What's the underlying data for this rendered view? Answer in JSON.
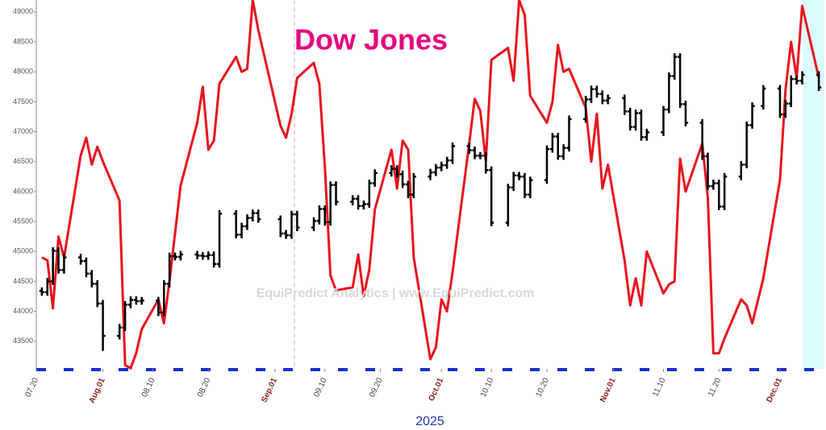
{
  "chart_data": {
    "type": "ohlc",
    "title": "Dow Jones",
    "xlabel": "2025",
    "watermark": "EquiPredict Analytics | www.EquiPredict.com",
    "color": "#000000",
    "x": [
      "07.21",
      "07.22",
      "07.23",
      "07.24",
      "07.25",
      "07.28",
      "07.29",
      "07.30",
      "07.31",
      "08.01",
      "08.04",
      "08.05",
      "08.06",
      "08.07",
      "08.08",
      "08.11",
      "08.12",
      "08.13",
      "08.14",
      "08.15",
      "08.18",
      "08.19",
      "08.20",
      "08.21",
      "08.22",
      "08.25",
      "08.26",
      "08.27",
      "08.28",
      "08.29",
      "09.02",
      "09.03",
      "09.04",
      "09.05",
      "09.08",
      "09.09",
      "09.10",
      "09.11",
      "09.12",
      "09.15",
      "09.16",
      "09.17",
      "09.18",
      "09.19",
      "09.22",
      "09.23",
      "09.24",
      "09.25",
      "09.26",
      "09.29",
      "09.30",
      "10.01",
      "10.02",
      "10.03",
      "10.06",
      "10.07",
      "10.08",
      "10.09",
      "10.10",
      "10.13",
      "10.14",
      "10.15",
      "10.16",
      "10.17",
      "10.20",
      "10.21",
      "10.22",
      "10.23",
      "10.24",
      "10.27",
      "10.28",
      "10.29",
      "10.30",
      "10.31",
      "11.03",
      "11.04",
      "11.05",
      "11.06",
      "11.07",
      "11.10",
      "11.11",
      "11.12",
      "11.13",
      "11.14",
      "11.17",
      "11.18",
      "11.19",
      "11.20",
      "11.21",
      "11.24",
      "11.25",
      "11.26",
      "11.28",
      "12.01",
      "12.02",
      "12.03",
      "12.04",
      "12.05",
      "12.08"
    ],
    "open": [
      44340,
      44320,
      44500,
      45010,
      44690,
      44900,
      44840,
      44630,
      44460,
      44130,
      43590,
      43730,
      44110,
      44190,
      44170,
      44180,
      43980,
      44460,
      44920,
      44910,
      44950,
      44930,
      44920,
      44940,
      44790,
      45630,
      45280,
      45420,
      45560,
      45640,
      45540,
      45300,
      45270,
      45620,
      45400,
      45510,
      45710,
      45490,
      46110,
      45830,
      45880,
      45760,
      45790,
      46140,
      46310,
      46380,
      46290,
      46120,
      45950,
      46250,
      46320,
      46400,
      46440,
      46520,
      46760,
      46690,
      46600,
      46600,
      46360,
      45480,
      46070,
      46270,
      46250,
      45950,
      46190,
      46710,
      46920,
      46590,
      46730,
      47210,
      47540,
      47710,
      47630,
      47520,
      47560,
      47340,
      47080,
      47310,
      46910,
      46990,
      47370,
      47930,
      48250,
      47460,
      47150,
      46590,
      46090,
      46140,
      45750,
      46250,
      46450,
      47110,
      47430,
      47720,
      47290,
      47470,
      47880,
      47850,
      47950
    ],
    "high": [
      44400,
      44560,
      45070,
      45070,
      44960,
      44960,
      44900,
      44690,
      44520,
      44190,
      43790,
      44170,
      44250,
      44250,
      44240,
      44240,
      44520,
      44980,
      44980,
      45010,
      45010,
      44990,
      45000,
      45000,
      45690,
      45690,
      45480,
      45620,
      45700,
      45700,
      45600,
      45360,
      45680,
      45680,
      45570,
      45770,
      45770,
      46170,
      46170,
      45940,
      45940,
      45850,
      46200,
      46370,
      46440,
      46440,
      46350,
      46180,
      46310,
      46380,
      46460,
      46500,
      46580,
      46820,
      46820,
      46750,
      46660,
      46660,
      46420,
      46130,
      46330,
      46330,
      46310,
      46250,
      46770,
      46980,
      46980,
      46790,
      47270,
      47600,
      47770,
      47770,
      47690,
      47620,
      47620,
      47400,
      47370,
      47370,
      47050,
      47430,
      47990,
      48310,
      48310,
      47520,
      47210,
      46650,
      46200,
      46200,
      46310,
      46510,
      47170,
      47490,
      47780,
      47780,
      47530,
      47940,
      47940,
      48010,
      48010
    ],
    "low": [
      44260,
      44260,
      44440,
      44630,
      44630,
      44780,
      44570,
      44400,
      44070,
      43340,
      43530,
      43670,
      44050,
      44110,
      44110,
      43920,
      43920,
      44400,
      44850,
      44850,
      44870,
      44860,
      44860,
      44730,
      44730,
      45220,
      45220,
      45360,
      45500,
      45480,
      45240,
      45210,
      45210,
      45340,
      45340,
      45450,
      45430,
      45430,
      45770,
      45770,
      45700,
      45700,
      45730,
      46080,
      46250,
      46230,
      46060,
      45890,
      45890,
      46190,
      46260,
      46340,
      46380,
      46460,
      46630,
      46540,
      46540,
      46300,
      45420,
      45420,
      46010,
      46190,
      45890,
      45890,
      46130,
      46650,
      46530,
      46530,
      46670,
      47150,
      47480,
      47570,
      47460,
      47460,
      47280,
      47020,
      47020,
      46850,
      46850,
      46930,
      47310,
      47870,
      47400,
      47090,
      46530,
      46030,
      46030,
      45690,
      45690,
      46190,
      46390,
      47050,
      47370,
      47230,
      47230,
      47410,
      47790,
      47790,
      47680
    ],
    "close": [
      44320,
      44500,
      45010,
      44690,
      44900,
      44840,
      44630,
      44460,
      44130,
      43590,
      43730,
      44110,
      44190,
      44170,
      44180,
      43980,
      44460,
      44920,
      44910,
      44950,
      44930,
      44920,
      44940,
      44790,
      45630,
      45280,
      45420,
      45560,
      45640,
      45540,
      45300,
      45270,
      45620,
      45400,
      45510,
      45710,
      45490,
      46110,
      45830,
      45880,
      45760,
      45790,
      46140,
      46310,
      46380,
      46290,
      46120,
      45950,
      46250,
      46320,
      46400,
      46440,
      46520,
      46760,
      46690,
      46600,
      46600,
      46360,
      45480,
      46070,
      46270,
      46250,
      45950,
      46190,
      46710,
      46920,
      46590,
      46730,
      47210,
      47540,
      47710,
      47630,
      47520,
      47560,
      47340,
      47080,
      47310,
      46910,
      46990,
      47370,
      47930,
      48250,
      47460,
      47150,
      46590,
      46090,
      46140,
      45750,
      46250,
      46450,
      47110,
      47430,
      47720,
      47290,
      47470,
      47880,
      47850,
      47950,
      47740
    ],
    "line": {
      "type": "line",
      "color": "#e8141c",
      "values": [
        44900,
        44850,
        44050,
        45250,
        44900,
        46600,
        46900,
        46450,
        46750,
        46500,
        45850,
        43100,
        43050,
        43300,
        43700,
        44200,
        43800,
        44500,
        45300,
        46100,
        47150,
        47750,
        46700,
        46850,
        47800,
        48250,
        48000,
        48050,
        49200,
        48700,
        47100,
        46900,
        47300,
        47900,
        48150,
        47800,
        46400,
        44600,
        44350,
        44400,
        44950,
        44250,
        44700,
        45700,
        46700,
        46050,
        46850,
        46700,
        44900,
        43200,
        43400,
        44200,
        44000,
        44650,
        46800,
        47550,
        47350,
        46500,
        48200,
        48400,
        47850,
        49200,
        48950,
        47600,
        47150,
        47500,
        48450,
        48000,
        48050,
        47400,
        46500,
        47300,
        46050,
        46450,
        44850,
        44100,
        44550,
        44100,
        45000,
        44300,
        44450,
        44500,
        46550,
        46000,
        46800,
        45900,
        43300,
        43300,
        43550,
        44200,
        44100,
        43800,
        44550,
        46200,
        47700,
        48500,
        47900,
        49100,
        47900
      ]
    },
    "xlim": [
      "07.20",
      "12.09"
    ],
    "xticks": [
      "07.20",
      {
        "value": "08.01",
        "label": "Aug.01"
      },
      "08.10",
      "08.20",
      {
        "value": "09.01",
        "label": "Sep.01"
      },
      "09.10",
      "09.20",
      {
        "value": "10.01",
        "label": "Oct.01"
      },
      "10.10",
      "10.20",
      {
        "value": "11.01",
        "label": "Nov.01"
      },
      "11.10",
      "11.20",
      {
        "value": "12.01",
        "label": "Dec.01"
      }
    ],
    "ylim": [
      43040,
      49200
    ],
    "yticks": [
      43500,
      44000,
      44500,
      45000,
      45500,
      46000,
      46500,
      47000,
      47500,
      48000,
      48500,
      49000
    ]
  }
}
